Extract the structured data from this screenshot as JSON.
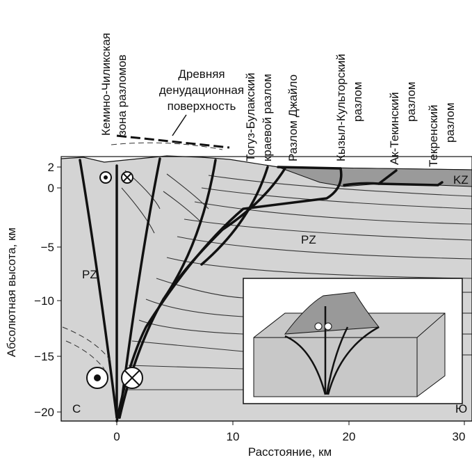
{
  "fault_labels": {
    "kemin": [
      "Кемино-Чиликская",
      "зона разломов"
    ],
    "surface": [
      "Древняя",
      "денудационная",
      "поверхность"
    ],
    "togus": [
      "Тогуз-Булакский",
      "краевой разлом"
    ],
    "jailo": [
      "Разлом Джайло"
    ],
    "kyzyl": [
      "Кызыл-Культорский",
      "разлом"
    ],
    "aktek": [
      "Ак-Текинский",
      "разлом"
    ],
    "tekren": [
      "Текренский",
      "разлом"
    ]
  },
  "units": {
    "pz_left": "PZ",
    "pz_right": "PZ",
    "kz": "KZ"
  },
  "directions": {
    "north": "С",
    "south": "Ю"
  },
  "axes": {
    "x_label": "Расстояние, км",
    "x_ticks": [
      "0",
      "10",
      "20",
      "30"
    ],
    "y_label": "Абсолютная высота, км",
    "y_ticks": [
      "2",
      "0",
      "−5",
      "−10",
      "−15",
      "−20"
    ]
  }
}
